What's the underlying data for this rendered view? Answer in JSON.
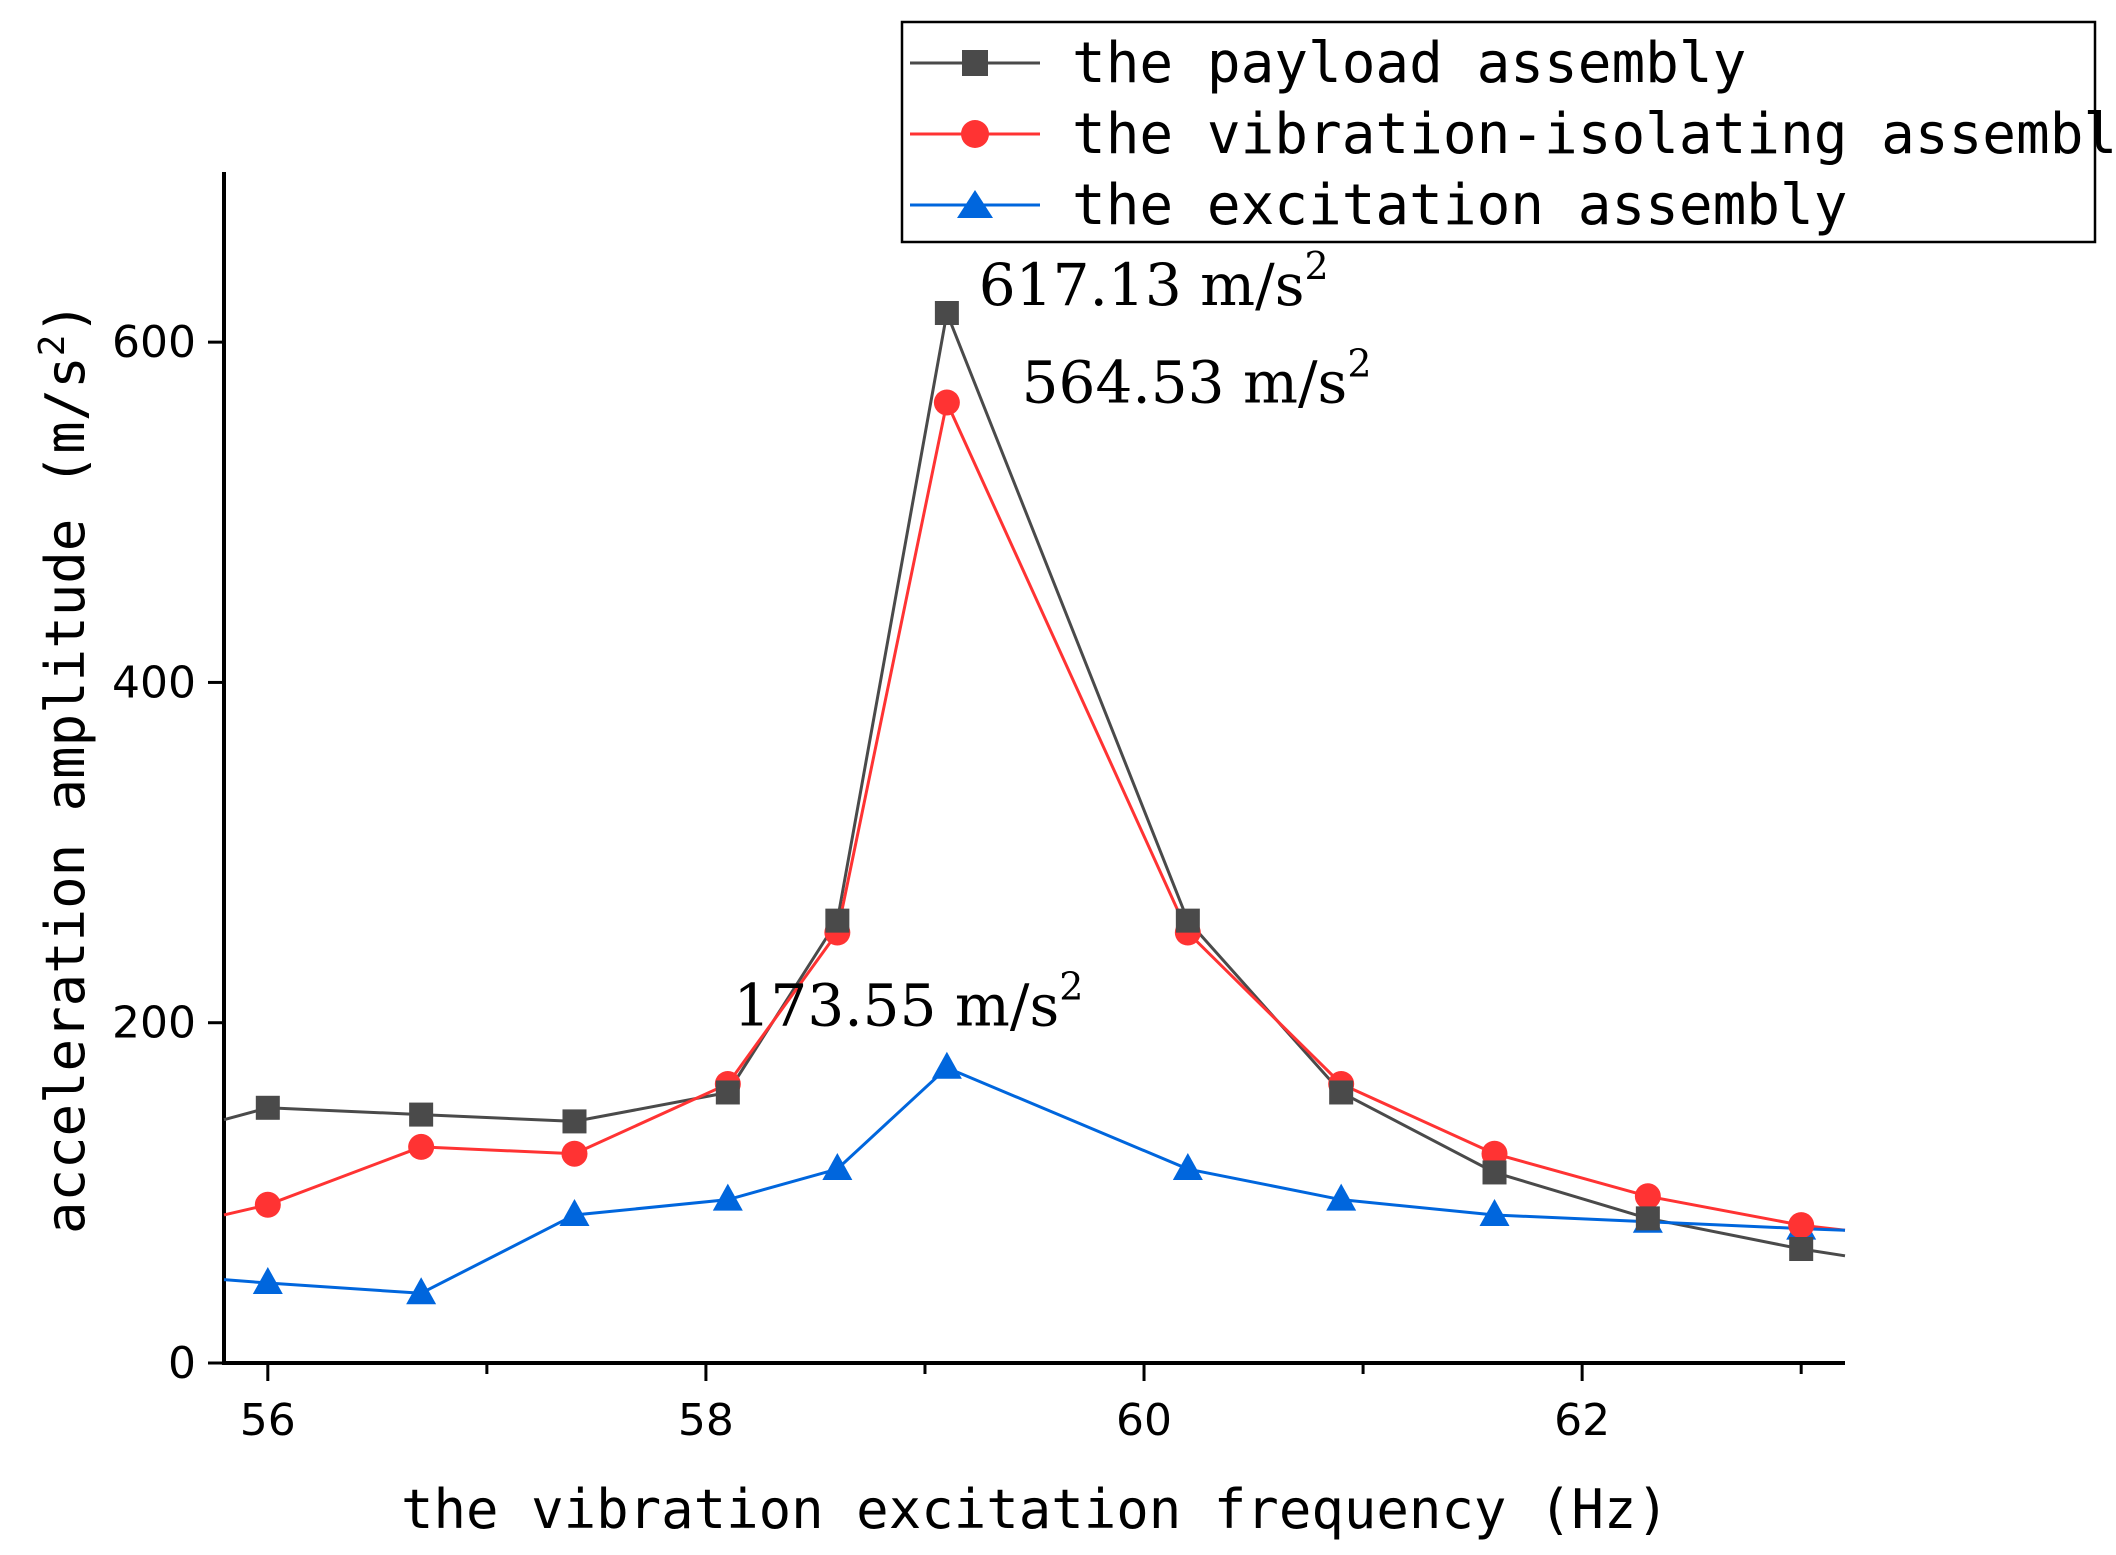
{
  "chart_data": {
    "type": "line",
    "title": "",
    "xlabel": "the vibration excitation frequency (Hz)",
    "ylabel": "acceleration amplitude (m/s",
    "ylabel_sup": "2",
    "ylabel_close": ")",
    "xlim": [
      55.8,
      63.2
    ],
    "ylim": [
      0,
      700
    ],
    "x_ticks": [
      56,
      58,
      60,
      62
    ],
    "x_tick_labels": [
      "56",
      "58",
      "60",
      "62"
    ],
    "x_minor_ticks": [
      57,
      59,
      61,
      63
    ],
    "y_ticks": [
      0,
      200,
      400,
      600
    ],
    "y_tick_labels": [
      "0",
      "200",
      "400",
      "600"
    ],
    "legend_position": "top-right",
    "series": [
      {
        "name": "the payload assembly",
        "color": "#4a4a4a",
        "marker": "square",
        "start": [
          55.8,
          143
        ],
        "x": [
          56.0,
          56.7,
          57.4,
          58.1,
          58.6,
          59.1,
          60.2,
          60.9,
          61.6,
          62.3,
          63.0
        ],
        "values": [
          150,
          146,
          142,
          159,
          260,
          617.13,
          260,
          159,
          112,
          85,
          67
        ],
        "end": [
          63.2,
          63
        ]
      },
      {
        "name": "the vibration-isolating assembly",
        "color": "#ff3333",
        "marker": "circle",
        "start": [
          55.8,
          87
        ],
        "x": [
          56.0,
          56.7,
          57.4,
          58.1,
          58.6,
          59.1,
          60.2,
          60.9,
          61.6,
          62.3,
          63.0
        ],
        "values": [
          93,
          127,
          123,
          164,
          253,
          564.53,
          253,
          164,
          123,
          98,
          81
        ],
        "end": [
          63.2,
          78
        ]
      },
      {
        "name": "the excitation assembly",
        "color": "#0066dd",
        "marker": "triangle",
        "start": [
          55.8,
          49
        ],
        "x": [
          56.0,
          56.7,
          57.4,
          58.1,
          58.6,
          59.1,
          60.2,
          60.9,
          61.6,
          62.3,
          63.0
        ],
        "values": [
          47,
          41,
          87,
          96,
          114,
          173.55,
          114,
          96,
          87,
          83,
          79
        ],
        "end": [
          63.2,
          78
        ]
      }
    ],
    "annotations": [
      {
        "text": "617.13 m/s",
        "sup": "2",
        "x": 59.2,
        "y": 617.13
      },
      {
        "text": "564.53 m/s",
        "sup": "2",
        "x": 59.35,
        "y": 564.53
      },
      {
        "text": "173.55 m/s",
        "sup": "2",
        "x": 58.4,
        "y": 173.55
      }
    ]
  }
}
